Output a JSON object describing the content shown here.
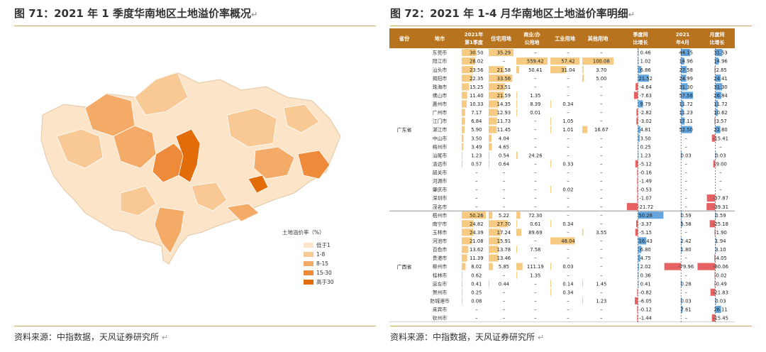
{
  "left": {
    "title": "图 71：2021 年 1 季度华南地区土地溢价率概况",
    "source": "资料来源：中指数据，天风证券研究所",
    "legend_title": "土地溢价率（%）",
    "legend": [
      {
        "label": "低于1",
        "color": "#fbe4c8"
      },
      {
        "label": "1-8",
        "color": "#f8c995"
      },
      {
        "label": "8-15",
        "color": "#f4ab67"
      },
      {
        "label": "15-30",
        "color": "#ee8b3b"
      },
      {
        "label": "高于30",
        "color": "#e36c0a"
      }
    ]
  },
  "right": {
    "title": "图 72：2021 年 1-4 月华南地区土地溢价率明细",
    "source": "资料来源：中指数据，天风证券研究所",
    "headers": [
      "省份",
      "地市",
      "2021年第1季度",
      "住宅用地",
      "商业/办公用地",
      "工业用地",
      "其他用地",
      "季度同比增长",
      "2021年4月",
      "月度同比增长"
    ],
    "provinces": [
      {
        "name": "广东省",
        "rows": [
          {
            "city": "东莞市",
            "q1": "30.50",
            "res": "35.29",
            "com": "–",
            "ind": "–",
            "oth": "–",
            "qyoy": "0.46",
            "apr": "44.15",
            "myoy": "31.53"
          },
          {
            "city": "阳江市",
            "q1": "28.02",
            "res": "–",
            "com": "559.42",
            "ind": "57.42",
            "oth": "100.08",
            "qyoy": "1.02",
            "apr": "14.96",
            "myoy": "14.96"
          },
          {
            "city": "汕头市",
            "q1": "23.56",
            "res": "21.58",
            "com": "50.41",
            "ind": "31.04",
            "oth": "3.70",
            "qyoy": "6.86",
            "apr": "27.58",
            "myoy": "-2.85"
          },
          {
            "city": "揭阳市",
            "q1": "22.35",
            "res": "33.56",
            "com": "–",
            "ind": "–",
            "oth": "5.00",
            "qyoy": "21.52",
            "apr": "24.99",
            "myoy": "24.41"
          },
          {
            "city": "珠海市",
            "q1": "15.25",
            "res": "23.51",
            "com": "–",
            "ind": "–",
            "oth": "–",
            "qyoy": "-4.64",
            "apr": "31.30",
            "myoy": "31.30"
          },
          {
            "city": "佛山市",
            "q1": "11.40",
            "res": "21.59",
            "com": "1.35",
            "ind": "–",
            "oth": "–",
            "qyoy": "-7.63",
            "apr": "57.58",
            "myoy": "26.84"
          },
          {
            "city": "惠州市",
            "q1": "10.33",
            "res": "14.35",
            "com": "8.39",
            "ind": "0.34",
            "oth": "–",
            "qyoy": "9.79",
            "apr": "11.72",
            "myoy": "11.72"
          },
          {
            "city": "广州市",
            "q1": "7.17",
            "res": "12.93",
            "com": "0.01",
            "ind": "–",
            "oth": "–",
            "qyoy": "-2.82",
            "apr": "11.23",
            "myoy": "10.62"
          },
          {
            "city": "江门市",
            "q1": "6.84",
            "res": "11.73",
            "com": "–",
            "ind": "1.05",
            "oth": "–",
            "qyoy": "-3.02",
            "apr": "17.11",
            "myoy": "-3.57"
          },
          {
            "city": "湛江市",
            "q1": "5.90",
            "res": "11.45",
            "com": "–",
            "ind": "1.01",
            "oth": "16.67",
            "qyoy": "4.81",
            "apr": "52.50",
            "myoy": "22.80"
          },
          {
            "city": "中山市",
            "q1": "3.50",
            "res": "4.04",
            "com": "–",
            "ind": "–",
            "oth": "–",
            "qyoy": "3.50",
            "apr": "–",
            "myoy": "-15.41"
          },
          {
            "city": "梅州市",
            "q1": "3.49",
            "res": "4.65",
            "com": "–",
            "ind": "–",
            "oth": "–",
            "qyoy": "0.25",
            "apr": "–",
            "myoy": "–"
          },
          {
            "city": "汕尾市",
            "q1": "1.23",
            "res": "0.54",
            "com": "24.26",
            "ind": "–",
            "oth": "–",
            "qyoy": "1.23",
            "apr": "0.03",
            "myoy": "0.03"
          },
          {
            "city": "清远市",
            "q1": "0.57",
            "res": "0.64",
            "com": "–",
            "ind": "0.33",
            "oth": "–",
            "qyoy": "-5.12",
            "apr": "–",
            "myoy": "-9.00"
          },
          {
            "city": "韶关市",
            "q1": "–",
            "res": "–",
            "com": "–",
            "ind": "–",
            "oth": "–",
            "qyoy": "-0.16",
            "apr": "–",
            "myoy": "–"
          },
          {
            "city": "河源市",
            "q1": "–",
            "res": "–",
            "com": "–",
            "ind": "–",
            "oth": "–",
            "qyoy": "-1.49",
            "apr": "–",
            "myoy": "–"
          },
          {
            "city": "肇庆市",
            "q1": "–",
            "res": "–",
            "com": "–",
            "ind": "0.02",
            "oth": "–",
            "qyoy": "-0.53",
            "apr": "–",
            "myoy": "–"
          },
          {
            "city": "深圳市",
            "q1": "–",
            "res": "–",
            "com": "–",
            "ind": "–",
            "oth": "–",
            "qyoy": "-1.07",
            "apr": "–",
            "myoy": "-37.87"
          },
          {
            "city": "茂名市",
            "q1": "–",
            "res": "–",
            "com": "–",
            "ind": "–",
            "oth": "–",
            "qyoy": "-21.72",
            "apr": "–",
            "myoy": "-39.31"
          }
        ]
      },
      {
        "name": "广西省",
        "rows": [
          {
            "city": "梧州市",
            "q1": "50.26",
            "res": "5.22",
            "com": "72.30",
            "ind": "–",
            "oth": "–",
            "qyoy": "50.26",
            "apr": "0.59",
            "myoy": "0.59"
          },
          {
            "city": "南宁市",
            "q1": "24.82",
            "res": "27.70",
            "com": "0.61",
            "ind": "0.34",
            "oth": "–",
            "qyoy": "-3.37",
            "apr": "5.58",
            "myoy": "-25.18"
          },
          {
            "city": "玉林市",
            "q1": "24.39",
            "res": "17.24",
            "com": "89.69",
            "ind": "–",
            "oth": "3.55",
            "qyoy": "-5.15",
            "apr": "–",
            "myoy": "-1.90"
          },
          {
            "city": "河池市",
            "q1": "21.08",
            "res": "15.91",
            "com": "–",
            "ind": "48.04",
            "oth": "–",
            "qyoy": "16.43",
            "apr": "2.42",
            "myoy": "1.94"
          },
          {
            "city": "百色市",
            "q1": "13.62",
            "res": "13.78",
            "com": "7.58",
            "ind": "–",
            "oth": "–",
            "qyoy": "6.80",
            "apr": "1.80",
            "myoy": "3.10"
          },
          {
            "city": "贵港市",
            "q1": "11.39",
            "res": "13.46",
            "com": "–",
            "ind": "–",
            "oth": "–",
            "qyoy": "4.75",
            "apr": "–",
            "myoy": "-4.05"
          },
          {
            "city": "柳州市",
            "q1": "8.02",
            "res": "5.85",
            "com": "111.19",
            "ind": "0.03",
            "oth": "–",
            "qyoy": "2.02",
            "apr": "-79.96",
            "myoy": "-80.06"
          },
          {
            "city": "桂林市",
            "q1": "0.62",
            "res": "–",
            "com": "1.35",
            "ind": "–",
            "oth": "–",
            "qyoy": "0.36",
            "apr": "–",
            "myoy": "-0.02"
          },
          {
            "city": "崇左市",
            "q1": "0.41",
            "res": "0.44",
            "com": "–",
            "ind": "0.14",
            "oth": "1.45",
            "qyoy": "0.41",
            "apr": "0.28",
            "myoy": "-0.49"
          },
          {
            "city": "贺州市",
            "q1": "0.25",
            "res": "–",
            "com": "–",
            "ind": "0.34",
            "oth": "–",
            "qyoy": "-0.82",
            "apr": "–",
            "myoy": "-21.83"
          },
          {
            "city": "防城港市",
            "q1": "0.08",
            "res": "–",
            "com": "–",
            "ind": "–",
            "oth": "1.23",
            "qyoy": "-6.05",
            "apr": "0.03",
            "myoy": "0.03"
          },
          {
            "city": "来宾市",
            "q1": "–",
            "res": "–",
            "com": "–",
            "ind": "–",
            "oth": "–",
            "qyoy": "-0.12",
            "apr": "7.61",
            "myoy": "26.11"
          },
          {
            "city": "钦州市",
            "q1": "–",
            "res": "–",
            "com": "–",
            "ind": "–",
            "oth": "–",
            "qyoy": "-1.44",
            "apr": "–",
            "myoy": "-15.45"
          }
        ]
      }
    ]
  }
}
